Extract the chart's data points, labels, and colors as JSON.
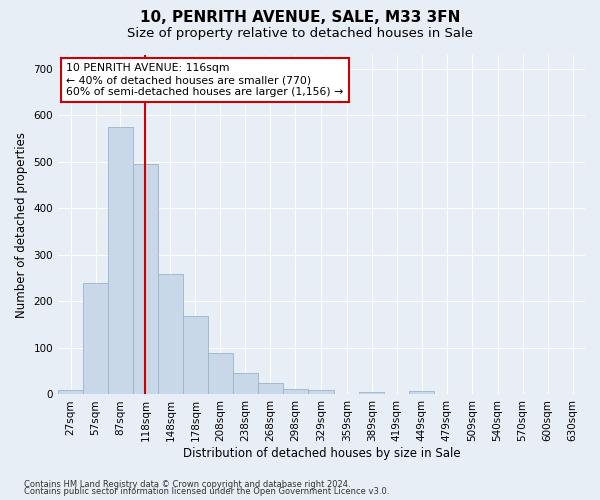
{
  "title": "10, PENRITH AVENUE, SALE, M33 3FN",
  "subtitle": "Size of property relative to detached houses in Sale",
  "xlabel": "Distribution of detached houses by size in Sale",
  "ylabel": "Number of detached properties",
  "footnote1": "Contains HM Land Registry data © Crown copyright and database right 2024.",
  "footnote2": "Contains public sector information licensed under the Open Government Licence v3.0.",
  "annotation_title": "10 PENRITH AVENUE: 116sqm",
  "annotation_line2": "← 40% of detached houses are smaller (770)",
  "annotation_line3": "60% of semi-detached houses are larger (1,156) →",
  "bar_color": "#c8d8e8",
  "bar_edge_color": "#9ab4cc",
  "vline_color": "#cc0000",
  "vline_x": 116,
  "categories": [
    "27sqm",
    "57sqm",
    "87sqm",
    "118sqm",
    "148sqm",
    "178sqm",
    "208sqm",
    "238sqm",
    "268sqm",
    "298sqm",
    "329sqm",
    "359sqm",
    "389sqm",
    "419sqm",
    "449sqm",
    "479sqm",
    "509sqm",
    "540sqm",
    "570sqm",
    "600sqm",
    "630sqm"
  ],
  "bin_edges": [
    12,
    42,
    72,
    102,
    132,
    162,
    192,
    222,
    252,
    282,
    312,
    344,
    374,
    404,
    434,
    464,
    494,
    525,
    555,
    585,
    615,
    645
  ],
  "values": [
    10,
    240,
    575,
    495,
    258,
    168,
    90,
    47,
    25,
    12,
    9,
    0,
    5,
    0,
    8,
    0,
    0,
    0,
    0,
    0,
    0
  ],
  "ylim": [
    0,
    730
  ],
  "yticks": [
    0,
    100,
    200,
    300,
    400,
    500,
    600,
    700
  ],
  "background_color": "#e8eef5",
  "title_fontsize": 11,
  "subtitle_fontsize": 9.5,
  "annotation_box_facecolor": "#ffffff",
  "annotation_box_edgecolor": "#cc0000",
  "annotation_fontsize": 7.8,
  "axis_label_fontsize": 8.5,
  "tick_fontsize": 7.5,
  "footnote_fontsize": 6.0
}
